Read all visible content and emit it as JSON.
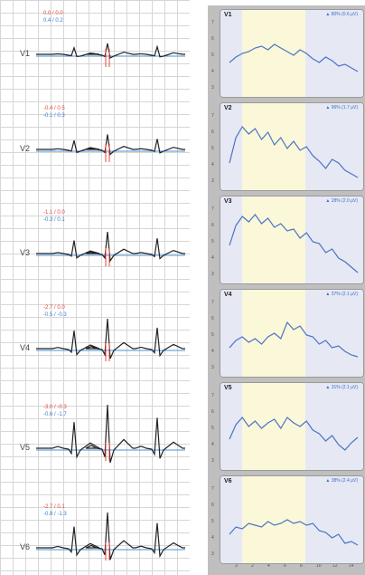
{
  "ecg": {
    "leads": [
      {
        "name": "V1",
        "st_red": "0.0 / 0.0",
        "st_blue": "0.4 / 0.2"
      },
      {
        "name": "V2",
        "st_red": "-0.4 / 0.5",
        "st_blue": "-0.1 / 0.3"
      },
      {
        "name": "V3",
        "st_red": "-1.1 / 0.0",
        "st_blue": "-0.3 / 0.1"
      },
      {
        "name": "V4",
        "st_red": "-2.7 / 0.0",
        "st_blue": "-0.5 / -0.3"
      },
      {
        "name": "V5",
        "st_red": "-3.0 / -0.3",
        "st_blue": "-0.6 / -1.7"
      },
      {
        "name": "V6",
        "st_red": "-2.7 / 0.1",
        "st_blue": "-0.8 / -1.3"
      }
    ],
    "colors": {
      "current_beat": "#222222",
      "reference_beat": "#4a90d9",
      "markers": "#e2483d"
    }
  },
  "trend": {
    "cards": [
      {
        "name": "V1",
        "value": "▲ 80% (0.6 µV)",
        "y": [
          4.6,
          4.9,
          5.1,
          5.2,
          5.4,
          5.5,
          5.3,
          5.6,
          5.4,
          5.2,
          5.0,
          5.3,
          5.1,
          4.8,
          4.6,
          4.9,
          4.7,
          4.4,
          4.5,
          4.3,
          4.1
        ]
      },
      {
        "name": "V2",
        "value": "▲ 96% (1.7 µV)",
        "y": [
          4.2,
          5.6,
          6.2,
          5.8,
          6.1,
          5.5,
          5.9,
          5.2,
          5.6,
          5.0,
          5.4,
          4.9,
          5.1,
          4.6,
          4.3,
          3.9,
          4.4,
          4.2,
          3.8,
          3.6,
          3.4
        ]
      },
      {
        "name": "V3",
        "value": "▲ 28% (2.0 µV)",
        "y": [
          4.8,
          5.9,
          6.4,
          6.1,
          6.5,
          6.0,
          6.3,
          5.8,
          6.0,
          5.6,
          5.7,
          5.2,
          5.5,
          5.0,
          4.9,
          4.4,
          4.6,
          4.1,
          3.9,
          3.6,
          3.3
        ]
      },
      {
        "name": "V4",
        "value": "▲ 37% (2.1 µV)",
        "y": [
          4.3,
          4.7,
          4.9,
          4.6,
          4.8,
          4.5,
          4.9,
          5.1,
          4.8,
          5.7,
          5.3,
          5.5,
          5.0,
          4.9,
          4.5,
          4.7,
          4.3,
          4.4,
          4.1,
          3.9,
          3.8
        ]
      },
      {
        "name": "V5",
        "value": "▲ 31% (2.1 µV)",
        "y": [
          4.4,
          5.2,
          5.6,
          5.1,
          5.4,
          5.0,
          5.3,
          5.5,
          5.0,
          5.6,
          5.3,
          5.1,
          5.4,
          4.9,
          4.7,
          4.3,
          4.6,
          4.1,
          3.8,
          4.2,
          4.5
        ]
      },
      {
        "name": "V6",
        "value": "▲ 38% (2.4 µV)",
        "y": [
          4.3,
          4.7,
          4.6,
          4.9,
          4.8,
          4.7,
          5.0,
          4.8,
          4.9,
          5.1,
          4.9,
          5.0,
          4.8,
          4.9,
          4.5,
          4.4,
          4.1,
          4.3,
          3.8,
          3.9,
          3.7
        ]
      }
    ],
    "y_ticks": [
      "7",
      "6",
      "5",
      "4",
      "3"
    ],
    "x_ticks": [
      "3",
      "2",
      "4",
      "6",
      "8",
      "10",
      "12",
      "14"
    ],
    "line_color": "#4a74c4"
  }
}
